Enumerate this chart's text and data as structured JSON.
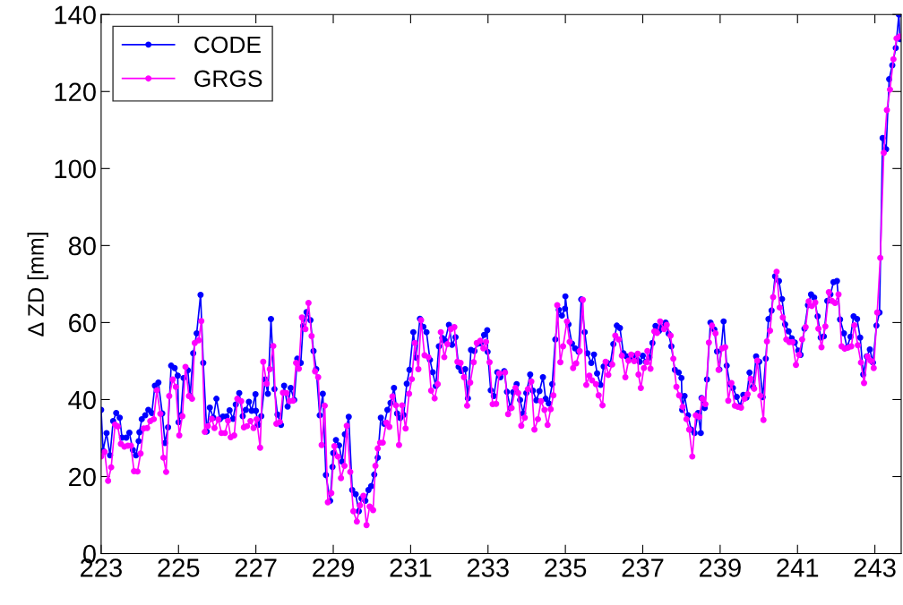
{
  "chart_data": {
    "type": "line",
    "ylabel": "Δ ZD [mm]",
    "xlim": [
      223,
      243.68
    ],
    "ylim": [
      0,
      140
    ],
    "xticks": [
      223,
      225,
      227,
      229,
      231,
      233,
      235,
      237,
      239,
      241,
      243
    ],
    "yticks": [
      0,
      20,
      40,
      60,
      80,
      100,
      120,
      140
    ],
    "grid": false,
    "legend": "top left",
    "marker": "circle",
    "line_style": "solid",
    "series": [
      {
        "name": "CODE",
        "color": "#0000ff",
        "x": [
          223.0,
          223.05,
          223.14,
          223.23,
          223.31,
          223.39,
          223.48,
          223.54,
          223.65,
          223.73,
          223.82,
          223.9,
          223.97,
          223.99,
          224.05,
          224.14,
          224.22,
          224.31,
          224.39,
          224.48,
          224.58,
          224.65,
          224.73,
          224.81,
          224.9,
          224.98,
          225.0,
          225.06,
          225.13,
          225.24,
          225.3,
          225.38,
          225.47,
          225.57,
          225.64,
          225.73,
          225.81,
          225.9,
          225.98,
          226.07,
          226.15,
          226.24,
          226.32,
          226.41,
          226.48,
          226.57,
          226.66,
          226.74,
          226.82,
          226.89,
          226.99,
          227.0,
          227.06,
          227.14,
          227.24,
          227.31,
          227.39,
          227.48,
          227.56,
          227.65,
          227.73,
          227.82,
          227.9,
          227.99,
          228.07,
          228.16,
          228.22,
          228.31,
          228.41,
          228.49,
          228.56,
          228.65,
          228.73,
          228.81,
          228.92,
          228.98,
          229.0,
          229.07,
          229.15,
          229.23,
          229.3,
          229.4,
          229.49,
          229.58,
          229.66,
          229.73,
          229.83,
          229.91,
          229.98,
          230.06,
          230.15,
          230.23,
          230.32,
          230.4,
          230.48,
          230.57,
          230.65,
          230.73,
          230.82,
          230.9,
          230.97,
          231.07,
          231.14,
          231.24,
          231.33,
          231.41,
          231.5,
          231.57,
          231.65,
          231.73,
          231.82,
          231.89,
          231.99,
          232.07,
          232.16,
          232.24,
          232.31,
          232.41,
          232.48,
          232.56,
          232.65,
          232.73,
          232.81,
          232.9,
          232.98,
          232.99,
          233.07,
          233.15,
          233.24,
          233.32,
          233.42,
          233.49,
          233.58,
          233.65,
          233.74,
          233.83,
          233.91,
          233.99,
          234.09,
          234.16,
          234.25,
          234.33,
          234.42,
          234.49,
          234.57,
          234.66,
          234.74,
          234.83,
          234.91,
          234.99,
          235.0,
          235.08,
          235.17,
          235.25,
          235.34,
          235.41,
          235.5,
          235.57,
          235.67,
          235.74,
          235.82,
          235.91,
          235.99,
          236.08,
          236.16,
          236.24,
          236.33,
          236.41,
          236.5,
          236.58,
          236.67,
          236.75,
          236.84,
          236.92,
          237.0,
          237.08,
          237.17,
          237.25,
          237.33,
          237.42,
          237.5,
          237.59,
          237.67,
          237.74,
          237.83,
          237.93,
          238.0,
          238.02,
          238.08,
          238.17,
          238.25,
          238.34,
          238.43,
          238.5,
          238.52,
          238.6,
          238.66,
          238.75,
          238.85,
          238.92,
          238.98,
          239.09,
          239.17,
          239.25,
          239.33,
          239.43,
          239.51,
          239.6,
          239.68,
          239.76,
          239.85,
          239.93,
          240.01,
          240.1,
          240.18,
          240.25,
          240.33,
          240.42,
          240.52,
          240.6,
          240.68,
          240.77,
          240.85,
          240.93,
          241.02,
          241.08,
          241.18,
          241.27,
          241.35,
          241.43,
          241.52,
          241.6,
          241.68,
          241.77,
          241.85,
          241.93,
          242.02,
          242.1,
          242.2,
          242.28,
          242.37,
          242.45,
          242.54,
          242.62,
          242.7,
          242.79,
          242.87,
          242.95,
          243.04,
          243.12,
          243.2,
          243.29,
          243.37,
          243.45,
          243.54,
          243.62,
          243.65
        ],
        "values": [
          37.3,
          26.7,
          31.3,
          25.5,
          34.4,
          36.5,
          35.3,
          30.1,
          30.1,
          31.4,
          26.9,
          25.5,
          29.2,
          31.5,
          34.9,
          35.9,
          37.3,
          36.5,
          43.6,
          44.4,
          36.4,
          28.7,
          32.8,
          48.8,
          48.2,
          46.2,
          34.1,
          35.9,
          45.6,
          47.6,
          40.9,
          52,
          57.2,
          67.2,
          49.5,
          31.7,
          37.9,
          35.3,
          40.2,
          34.9,
          35.6,
          35.6,
          37.2,
          35.0,
          38.7,
          41.7,
          35.7,
          37.3,
          39.4,
          37.1,
          41.4,
          37.1,
          33.4,
          35.7,
          45.2,
          41.5,
          60.9,
          42.7,
          36.1,
          33.4,
          43.6,
          38.2,
          43.0,
          39.9,
          50.6,
          49.5,
          59.1,
          62.7,
          60.6,
          52.6,
          47.9,
          35.9,
          41.5,
          20.4,
          13.7,
          22.5,
          26.1,
          29.5,
          28.1,
          23.9,
          31.0,
          35.5,
          16.5,
          15.4,
          11.0,
          14.3,
          13.7,
          16.5,
          17.5,
          20.5,
          24.9,
          35.3,
          33.7,
          37.3,
          39.1,
          43.0,
          36.4,
          35.2,
          36.0,
          44.1,
          47.7,
          57.5,
          50.9,
          61.0,
          58.9,
          57.5,
          50.3,
          47.1,
          43.5,
          53.8,
          56.0,
          55.3,
          59.4,
          54.2,
          56.2,
          48.5,
          47.4,
          47.9,
          40.3,
          52.9,
          52.6,
          54.5,
          54.6,
          56.8,
          58.0,
          52.4,
          42.4,
          40.9,
          47.1,
          45.8,
          47.4,
          42.0,
          37.8,
          41.9,
          44.0,
          39.9,
          36.4,
          41.7,
          46.5,
          42.3,
          39.8,
          42.2,
          45.8,
          40.2,
          39.0,
          44.0,
          55.6,
          63.3,
          61.8,
          63.6,
          66.8,
          59.5,
          54.5,
          53.3,
          52.4,
          66.0,
          57.5,
          52.0,
          49.5,
          51.7,
          46.8,
          43.8,
          48.6,
          49.5,
          49.2,
          54.4,
          59.2,
          58.6,
          52.0,
          51.2,
          50.6,
          51.4,
          50.5,
          49.8,
          51.4,
          49.8,
          50.9,
          54.7,
          59.1,
          57.8,
          58.9,
          60.0,
          57.1,
          53.8,
          47.7,
          47.0,
          45.6,
          37.3,
          40.9,
          35.9,
          32.2,
          31.3,
          36.5,
          31.3,
          40.4,
          37.8,
          45.2,
          60.0,
          58.2,
          52.5,
          47.8,
          60.3,
          48.8,
          44.0,
          43.0,
          40.7,
          38.3,
          41.2,
          40.5,
          47.0,
          43.3,
          51.2,
          49.8,
          40.6,
          50.6,
          60.9,
          63.1,
          72.0,
          70.8,
          66.1,
          59.5,
          57.7,
          55.9,
          54.8,
          52.7,
          51.6,
          58.4,
          64.5,
          67.3,
          66.5,
          61.6,
          56.1,
          56.4,
          65.6,
          67.3,
          70.5,
          70.8,
          60.8,
          57.2,
          53.5,
          56.3,
          61.6,
          60.9,
          56.1,
          46.5,
          51.2,
          53.0,
          49.6,
          59.2,
          62.6,
          107.9,
          105.0,
          123.2,
          126.8,
          131.3,
          140.0,
          133.6
        ]
      },
      {
        "name": "GRGS",
        "color": "#ff00ff",
        "x": [
          223.0,
          223.09,
          223.18,
          223.26,
          223.36,
          223.43,
          223.51,
          223.6,
          223.69,
          223.77,
          223.85,
          223.94,
          224.02,
          224.1,
          224.19,
          224.27,
          224.36,
          224.44,
          224.53,
          224.61,
          224.68,
          224.76,
          224.85,
          224.93,
          225.02,
          225.1,
          225.18,
          225.27,
          225.35,
          225.42,
          225.52,
          225.59,
          225.68,
          225.76,
          225.86,
          225.93,
          226.03,
          226.11,
          226.2,
          226.28,
          226.35,
          226.44,
          226.52,
          226.62,
          226.69,
          226.77,
          226.86,
          226.94,
          227.02,
          227.11,
          227.19,
          227.28,
          227.36,
          227.45,
          227.53,
          227.62,
          227.7,
          227.79,
          227.87,
          227.96,
          228.04,
          228.11,
          228.19,
          228.28,
          228.36,
          228.44,
          228.53,
          228.61,
          228.7,
          228.78,
          228.86,
          228.95,
          229.03,
          229.12,
          229.2,
          229.29,
          229.35,
          229.44,
          229.52,
          229.61,
          229.69,
          229.78,
          229.86,
          229.94,
          230.03,
          230.09,
          230.15,
          230.21,
          230.28,
          230.37,
          230.45,
          230.53,
          230.62,
          230.7,
          230.78,
          230.87,
          230.96,
          231.03,
          231.11,
          231.2,
          231.27,
          231.36,
          231.46,
          231.53,
          231.62,
          231.7,
          231.78,
          231.87,
          231.95,
          232.04,
          232.13,
          232.21,
          232.29,
          232.38,
          232.46,
          232.54,
          232.63,
          232.71,
          232.8,
          232.88,
          232.95,
          233.04,
          233.12,
          233.21,
          233.29,
          233.44,
          233.52,
          233.61,
          233.71,
          233.78,
          233.86,
          233.95,
          234.03,
          234.12,
          234.2,
          234.29,
          234.37,
          234.46,
          234.54,
          234.62,
          234.69,
          234.79,
          234.87,
          234.94,
          235.04,
          235.11,
          235.2,
          235.28,
          235.37,
          235.45,
          235.54,
          235.62,
          235.69,
          235.79,
          235.86,
          235.96,
          236.04,
          236.11,
          236.21,
          236.29,
          236.38,
          236.46,
          236.55,
          236.63,
          236.7,
          236.78,
          236.87,
          236.89,
          236.95,
          237.03,
          237.1,
          237.12,
          237.2,
          237.3,
          237.37,
          237.45,
          237.55,
          237.62,
          237.72,
          237.79,
          237.87,
          237.94,
          238.03,
          238.13,
          238.2,
          238.28,
          238.37,
          238.46,
          238.54,
          238.62,
          238.71,
          238.79,
          238.88,
          238.96,
          239.05,
          239.13,
          239.21,
          239.29,
          239.38,
          239.46,
          239.54,
          239.63,
          239.71,
          239.79,
          239.88,
          239.96,
          240.04,
          240.12,
          240.21,
          240.29,
          240.37,
          240.46,
          240.54,
          240.62,
          240.71,
          240.79,
          240.87,
          240.96,
          241.04,
          241.12,
          241.21,
          241.29,
          241.37,
          241.46,
          241.54,
          241.62,
          241.72,
          241.81,
          241.89,
          241.97,
          242.06,
          242.14,
          242.22,
          242.31,
          242.39,
          242.47,
          242.56,
          242.64,
          242.72,
          242.81,
          242.89,
          242.97,
          243.06,
          243.14,
          243.23,
          243.31,
          243.39,
          243.48,
          243.56,
          243.64
        ],
        "values": [
          25.2,
          26.4,
          18.9,
          22.4,
          33.5,
          33.0,
          28.5,
          27.8,
          28.0,
          28.0,
          21.4,
          21.3,
          26.0,
          32.5,
          32.6,
          34.4,
          34.9,
          42.4,
          36.3,
          24.9,
          21.2,
          40.9,
          45.2,
          43.3,
          30.7,
          35.7,
          48.5,
          40.9,
          40.2,
          54.7,
          55.4,
          60.4,
          31.6,
          33.1,
          35.0,
          32.6,
          34.8,
          31.3,
          31.3,
          34.5,
          30.2,
          30.7,
          40.2,
          39.6,
          32.8,
          33.1,
          34.4,
          32.6,
          34.9,
          27.5,
          49.8,
          44.1,
          47.9,
          53.9,
          33.7,
          34.2,
          41.8,
          41.7,
          39.6,
          39.7,
          49.5,
          48.0,
          61.3,
          58.3,
          65.1,
          56.5,
          47.3,
          45.8,
          28.2,
          38.4,
          13.3,
          15.7,
          27.9,
          25.2,
          19.6,
          22.8,
          33.2,
          21.2,
          11.0,
          8.3,
          12.5,
          15.0,
          7.4,
          12.2,
          11.3,
          22.8,
          27.3,
          28.8,
          28.8,
          34.0,
          32.9,
          40.8,
          38.5,
          28.2,
          38.5,
          32.5,
          41.5,
          45.3,
          54.7,
          47.9,
          60.6,
          51.5,
          51.0,
          42.3,
          40.3,
          44.0,
          57.5,
          51.0,
          54.4,
          58.3,
          58.8,
          49.8,
          49.5,
          45.8,
          38.4,
          44.4,
          49.7,
          54.7,
          55.3,
          53.3,
          55.0,
          49.7,
          38.8,
          38.9,
          46.8,
          47.0,
          36.2,
          37.8,
          43.0,
          41.7,
          33.2,
          35.3,
          42.7,
          44.7,
          32.2,
          34.9,
          39.6,
          37.3,
          33.4,
          37.5,
          41.1,
          64.5,
          49.7,
          53.8,
          60.3,
          55.0,
          48.2,
          49.4,
          52.6,
          65.9,
          43.8,
          46.2,
          45.0,
          44.0,
          41.1,
          38.5,
          49.8,
          46.4,
          49.1,
          56.6,
          55.6,
          51.4,
          45.8,
          50.1,
          51.7,
          50.0,
          51.9,
          46.5,
          43.0,
          48.2,
          49.7,
          52.6,
          48.0,
          57.7,
          57.3,
          60.3,
          58.3,
          59.4,
          56.6,
          50.6,
          43.3,
          41.1,
          38.1,
          34.9,
          32.2,
          25.2,
          35.9,
          35.5,
          40.2,
          38.8,
          54.8,
          59.2,
          57.2,
          47.7,
          53.3,
          53.6,
          39.7,
          44.3,
          38.4,
          38.1,
          37.9,
          40.2,
          41.4,
          45.4,
          42.8,
          50.1,
          41.0,
          34.7,
          55.1,
          57.9,
          66.6,
          73.2,
          63.9,
          61.3,
          55.6,
          54.9,
          54.9,
          49.0,
          51.6,
          55.6,
          58.8,
          65.5,
          64.3,
          65.2,
          58.4,
          53.6,
          59.0,
          67.9,
          65.6,
          65.1,
          67.3,
          53.8,
          53.2,
          53.5,
          53.8,
          59.3,
          54.1,
          49.6,
          44.3,
          51.2,
          50.1,
          48.2,
          62.6,
          76.8,
          104.1,
          115.2,
          120.5,
          128.4,
          133.8,
          134.3
        ]
      }
    ]
  }
}
